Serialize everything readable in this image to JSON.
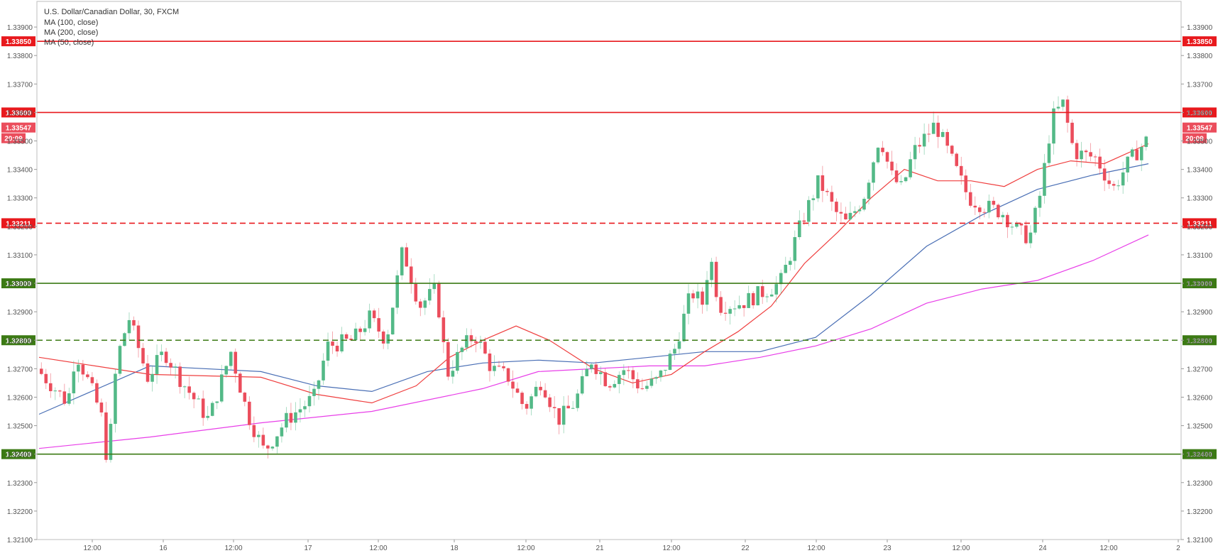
{
  "chart_data": {
    "type": "candlestick",
    "title": "U.S. Dollar/Canadian Dollar, 30, FXCM",
    "indicators": [
      "MA (100, close)",
      "MA (200, close)",
      "MA (50, close)"
    ],
    "ylim": [
      1.321,
      1.3399
    ],
    "y_ticks": [
      "1.33900",
      "1.33800",
      "1.33700",
      "1.33600",
      "1.33500",
      "1.33400",
      "1.33300",
      "1.33200",
      "1.33100",
      "1.33000",
      "1.32900",
      "1.32800",
      "1.32700",
      "1.32600",
      "1.32500",
      "1.32400",
      "1.32300",
      "1.32200",
      "1.32100"
    ],
    "x_ticks": [
      "12:00",
      "16",
      "12:00",
      "17",
      "12:00",
      "18",
      "12:00",
      "21",
      "12:00",
      "22",
      "12:00",
      "23",
      "12:00",
      "24",
      "12:00",
      "2"
    ],
    "levels": [
      {
        "label": "1.33850",
        "value": 1.3385,
        "color": "#e8191d",
        "style": "solid"
      },
      {
        "label": "1.33600",
        "value": 1.336,
        "color": "#e8191d",
        "style": "solid"
      },
      {
        "label": "1.33211",
        "value": 1.33211,
        "color": "#e8191d",
        "style": "dashed"
      },
      {
        "label": "1.33000",
        "value": 1.33,
        "color": "#3c7a14",
        "style": "solid"
      },
      {
        "label": "1.32800",
        "value": 1.328,
        "color": "#3c7a14",
        "style": "dashed"
      },
      {
        "label": "1.32400",
        "value": 1.324,
        "color": "#3c7a14",
        "style": "solid"
      }
    ],
    "last_price": {
      "label": "1.33547",
      "value": 1.33547,
      "countdown": "20:09"
    },
    "colors": {
      "up": "#53b987",
      "down": "#eb4d5c",
      "ma50": "#ef3e3e",
      "ma100": "#4a6fb5",
      "ma200": "#e83ee8"
    },
    "price_path": [
      {
        "x": 0.0,
        "y": 1.327
      },
      {
        "x": 0.028,
        "y": 1.3258
      },
      {
        "x": 0.035,
        "y": 1.3276
      },
      {
        "x": 0.048,
        "y": 1.3264
      },
      {
        "x": 0.058,
        "y": 1.3254
      },
      {
        "x": 0.064,
        "y": 1.3236
      },
      {
        "x": 0.072,
        "y": 1.3273
      },
      {
        "x": 0.083,
        "y": 1.3288
      },
      {
        "x": 0.1,
        "y": 1.3267
      },
      {
        "x": 0.115,
        "y": 1.3276
      },
      {
        "x": 0.13,
        "y": 1.3266
      },
      {
        "x": 0.155,
        "y": 1.3252
      },
      {
        "x": 0.175,
        "y": 1.3276
      },
      {
        "x": 0.19,
        "y": 1.3254
      },
      {
        "x": 0.205,
        "y": 1.3241
      },
      {
        "x": 0.225,
        "y": 1.3252
      },
      {
        "x": 0.25,
        "y": 1.326
      },
      {
        "x": 0.262,
        "y": 1.3278
      },
      {
        "x": 0.285,
        "y": 1.328
      },
      {
        "x": 0.3,
        "y": 1.3288
      },
      {
        "x": 0.315,
        "y": 1.328
      },
      {
        "x": 0.33,
        "y": 1.3312
      },
      {
        "x": 0.345,
        "y": 1.3292
      },
      {
        "x": 0.36,
        "y": 1.3298
      },
      {
        "x": 0.37,
        "y": 1.3268
      },
      {
        "x": 0.385,
        "y": 1.3278
      },
      {
        "x": 0.395,
        "y": 1.3282
      },
      {
        "x": 0.41,
        "y": 1.327
      },
      {
        "x": 0.425,
        "y": 1.3267
      },
      {
        "x": 0.44,
        "y": 1.3256
      },
      {
        "x": 0.455,
        "y": 1.3266
      },
      {
        "x": 0.47,
        "y": 1.3252
      },
      {
        "x": 0.485,
        "y": 1.3258
      },
      {
        "x": 0.5,
        "y": 1.3273
      },
      {
        "x": 0.515,
        "y": 1.3265
      },
      {
        "x": 0.53,
        "y": 1.327
      },
      {
        "x": 0.545,
        "y": 1.3263
      },
      {
        "x": 0.56,
        "y": 1.3266
      },
      {
        "x": 0.575,
        "y": 1.3277
      },
      {
        "x": 0.59,
        "y": 1.3297
      },
      {
        "x": 0.6,
        "y": 1.3293
      },
      {
        "x": 0.607,
        "y": 1.331
      },
      {
        "x": 0.615,
        "y": 1.3292
      },
      {
        "x": 0.635,
        "y": 1.3293
      },
      {
        "x": 0.65,
        "y": 1.3296
      },
      {
        "x": 0.67,
        "y": 1.33
      },
      {
        "x": 0.69,
        "y": 1.3322
      },
      {
        "x": 0.705,
        "y": 1.3336
      },
      {
        "x": 0.72,
        "y": 1.3325
      },
      {
        "x": 0.73,
        "y": 1.3321
      },
      {
        "x": 0.745,
        "y": 1.333
      },
      {
        "x": 0.76,
        "y": 1.3352
      },
      {
        "x": 0.77,
        "y": 1.3338
      },
      {
        "x": 0.78,
        "y": 1.3333
      },
      {
        "x": 0.79,
        "y": 1.3346
      },
      {
        "x": 0.81,
        "y": 1.3356
      },
      {
        "x": 0.825,
        "y": 1.3343
      },
      {
        "x": 0.84,
        "y": 1.333
      },
      {
        "x": 0.855,
        "y": 1.3327
      },
      {
        "x": 0.87,
        "y": 1.3325
      },
      {
        "x": 0.885,
        "y": 1.3318
      },
      {
        "x": 0.895,
        "y": 1.3316
      },
      {
        "x": 0.905,
        "y": 1.3332
      },
      {
        "x": 0.915,
        "y": 1.3358
      },
      {
        "x": 0.925,
        "y": 1.3363
      },
      {
        "x": 0.935,
        "y": 1.3346
      },
      {
        "x": 0.955,
        "y": 1.3344
      },
      {
        "x": 0.97,
        "y": 1.3333
      },
      {
        "x": 0.985,
        "y": 1.3343
      },
      {
        "x": 1.0,
        "y": 1.335
      }
    ],
    "ma50_path": [
      {
        "x": 0.0,
        "y": 1.3274
      },
      {
        "x": 0.1,
        "y": 1.3268
      },
      {
        "x": 0.2,
        "y": 1.3267
      },
      {
        "x": 0.25,
        "y": 1.3261
      },
      {
        "x": 0.3,
        "y": 1.3258
      },
      {
        "x": 0.34,
        "y": 1.3264
      },
      {
        "x": 0.37,
        "y": 1.3274
      },
      {
        "x": 0.4,
        "y": 1.328
      },
      {
        "x": 0.43,
        "y": 1.3285
      },
      {
        "x": 0.46,
        "y": 1.328
      },
      {
        "x": 0.5,
        "y": 1.327
      },
      {
        "x": 0.535,
        "y": 1.3265
      },
      {
        "x": 0.57,
        "y": 1.3268
      },
      {
        "x": 0.6,
        "y": 1.3276
      },
      {
        "x": 0.63,
        "y": 1.3283
      },
      {
        "x": 0.66,
        "y": 1.3292
      },
      {
        "x": 0.69,
        "y": 1.3307
      },
      {
        "x": 0.72,
        "y": 1.3318
      },
      {
        "x": 0.75,
        "y": 1.333
      },
      {
        "x": 0.78,
        "y": 1.334
      },
      {
        "x": 0.81,
        "y": 1.3336
      },
      {
        "x": 0.84,
        "y": 1.3336
      },
      {
        "x": 0.87,
        "y": 1.3334
      },
      {
        "x": 0.9,
        "y": 1.334
      },
      {
        "x": 0.93,
        "y": 1.3343
      },
      {
        "x": 0.96,
        "y": 1.3342
      },
      {
        "x": 1.0,
        "y": 1.3349
      }
    ],
    "ma100_path": [
      {
        "x": 0.0,
        "y": 1.3254
      },
      {
        "x": 0.1,
        "y": 1.3271
      },
      {
        "x": 0.2,
        "y": 1.3269
      },
      {
        "x": 0.25,
        "y": 1.3264
      },
      {
        "x": 0.3,
        "y": 1.3262
      },
      {
        "x": 0.35,
        "y": 1.3269
      },
      {
        "x": 0.4,
        "y": 1.3272
      },
      {
        "x": 0.45,
        "y": 1.3273
      },
      {
        "x": 0.5,
        "y": 1.3272
      },
      {
        "x": 0.55,
        "y": 1.3274
      },
      {
        "x": 0.6,
        "y": 1.3276
      },
      {
        "x": 0.65,
        "y": 1.3276
      },
      {
        "x": 0.7,
        "y": 1.3281
      },
      {
        "x": 0.75,
        "y": 1.3296
      },
      {
        "x": 0.8,
        "y": 1.3313
      },
      {
        "x": 0.85,
        "y": 1.3324
      },
      {
        "x": 0.9,
        "y": 1.3333
      },
      {
        "x": 0.95,
        "y": 1.3338
      },
      {
        "x": 1.0,
        "y": 1.3342
      }
    ],
    "ma200_path": [
      {
        "x": 0.0,
        "y": 1.3242
      },
      {
        "x": 0.1,
        "y": 1.3246
      },
      {
        "x": 0.2,
        "y": 1.3251
      },
      {
        "x": 0.3,
        "y": 1.3255
      },
      {
        "x": 0.4,
        "y": 1.3263
      },
      {
        "x": 0.45,
        "y": 1.3269
      },
      {
        "x": 0.5,
        "y": 1.327
      },
      {
        "x": 0.55,
        "y": 1.3271
      },
      {
        "x": 0.6,
        "y": 1.3271
      },
      {
        "x": 0.65,
        "y": 1.3274
      },
      {
        "x": 0.7,
        "y": 1.3278
      },
      {
        "x": 0.75,
        "y": 1.3284
      },
      {
        "x": 0.8,
        "y": 1.3293
      },
      {
        "x": 0.85,
        "y": 1.3298
      },
      {
        "x": 0.9,
        "y": 1.3301
      },
      {
        "x": 0.95,
        "y": 1.3308
      },
      {
        "x": 1.0,
        "y": 1.3317
      }
    ]
  }
}
